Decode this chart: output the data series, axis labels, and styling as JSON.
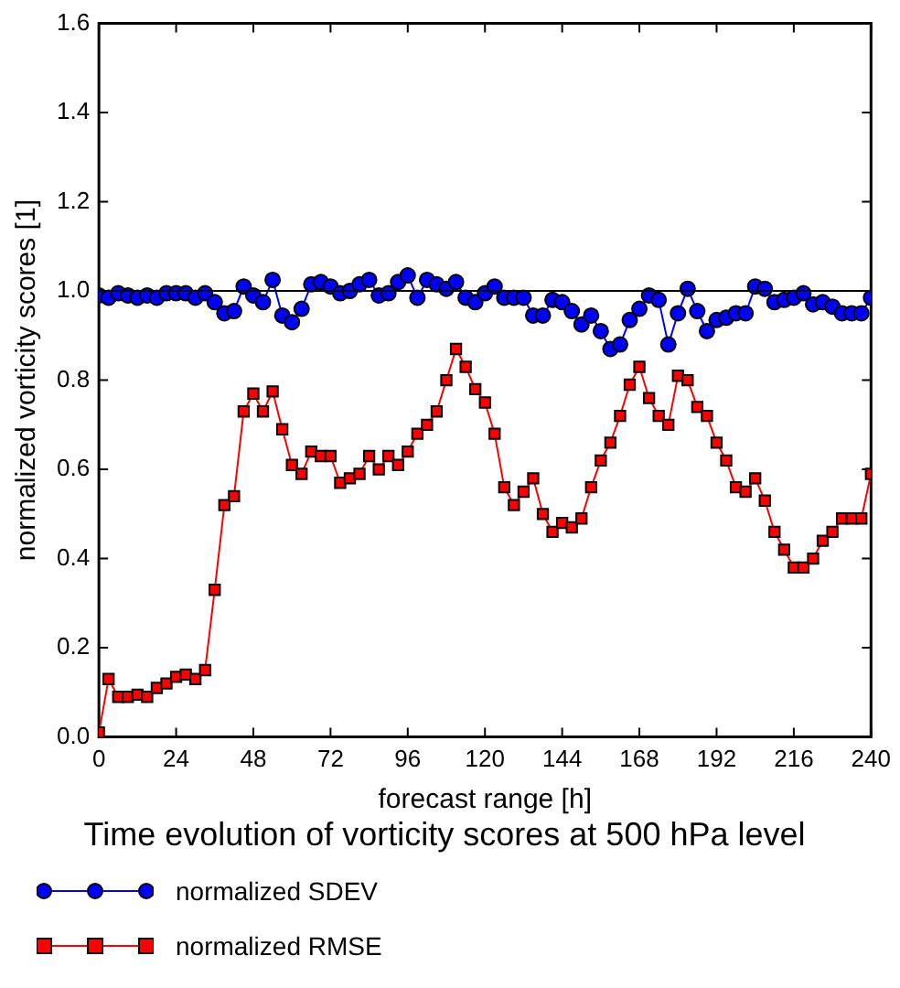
{
  "chart_data": {
    "type": "line",
    "title": "Time evolution of vorticity scores at 500 hPa level",
    "xlabel": "forecast range [h]",
    "ylabel": "normalized vorticity scores [1]",
    "x": [
      0,
      3,
      6,
      9,
      12,
      15,
      18,
      21,
      24,
      27,
      30,
      33,
      36,
      39,
      42,
      45,
      48,
      51,
      54,
      57,
      60,
      63,
      66,
      69,
      72,
      75,
      78,
      81,
      84,
      87,
      90,
      93,
      96,
      99,
      102,
      105,
      108,
      111,
      114,
      117,
      120,
      123,
      126,
      129,
      132,
      135,
      138,
      141,
      144,
      147,
      150,
      153,
      156,
      159,
      162,
      165,
      168,
      171,
      174,
      177,
      180,
      183,
      186,
      189,
      192,
      195,
      198,
      201,
      204,
      207,
      210,
      213,
      216,
      219,
      222,
      225,
      228,
      231,
      234,
      237,
      240
    ],
    "series": [
      {
        "name": "normalized SDEV",
        "color": "#0000ff",
        "marker": "circle",
        "values": [
          0.99,
          0.985,
          0.995,
          0.99,
          0.985,
          0.99,
          0.985,
          0.995,
          0.995,
          0.995,
          0.985,
          0.995,
          0.975,
          0.95,
          0.955,
          1.01,
          0.99,
          0.975,
          1.025,
          0.945,
          0.93,
          0.96,
          1.015,
          1.02,
          1.01,
          0.995,
          1.0,
          1.015,
          1.025,
          0.99,
          0.995,
          1.02,
          1.035,
          0.985,
          1.025,
          1.015,
          1.005,
          1.02,
          0.985,
          0.975,
          0.995,
          1.01,
          0.985,
          0.985,
          0.985,
          0.945,
          0.945,
          0.98,
          0.975,
          0.955,
          0.925,
          0.945,
          0.91,
          0.87,
          0.88,
          0.935,
          0.96,
          0.99,
          0.98,
          0.88,
          0.95,
          1.005,
          0.955,
          0.91,
          0.935,
          0.94,
          0.95,
          0.95,
          1.01,
          1.005,
          0.975,
          0.98,
          0.985,
          0.995,
          0.97,
          0.975,
          0.965,
          0.95,
          0.95,
          0.95,
          0.985
        ]
      },
      {
        "name": "normalized RMSE",
        "color": "#ff0000",
        "marker": "square",
        "values": [
          0.01,
          0.13,
          0.09,
          0.09,
          0.095,
          0.09,
          0.11,
          0.12,
          0.135,
          0.14,
          0.13,
          0.15,
          0.33,
          0.52,
          0.54,
          0.73,
          0.77,
          0.73,
          0.775,
          0.69,
          0.61,
          0.59,
          0.64,
          0.63,
          0.63,
          0.57,
          0.58,
          0.59,
          0.63,
          0.6,
          0.63,
          0.61,
          0.64,
          0.68,
          0.7,
          0.73,
          0.8,
          0.87,
          0.83,
          0.78,
          0.75,
          0.68,
          0.56,
          0.52,
          0.55,
          0.58,
          0.5,
          0.46,
          0.48,
          0.47,
          0.49,
          0.56,
          0.62,
          0.66,
          0.72,
          0.79,
          0.83,
          0.76,
          0.72,
          0.7,
          0.81,
          0.8,
          0.74,
          0.72,
          0.66,
          0.62,
          0.56,
          0.55,
          0.58,
          0.53,
          0.46,
          0.42,
          0.38,
          0.38,
          0.4,
          0.44,
          0.46,
          0.49,
          0.49,
          0.49,
          0.59
        ]
      }
    ],
    "xlim": [
      0,
      240
    ],
    "xticks": [
      0,
      24,
      48,
      72,
      96,
      120,
      144,
      168,
      192,
      216,
      240
    ],
    "ylim": [
      0,
      1.6
    ],
    "yticks": [
      {
        "value": 0,
        "label": "0.0"
      },
      {
        "value": 0.2,
        "label": "0.2"
      },
      {
        "value": 0.4,
        "label": "0.4"
      },
      {
        "value": 0.6,
        "label": "0.6"
      },
      {
        "value": 0.8,
        "label": "0.8"
      },
      {
        "value": 1,
        "label": "1.0"
      },
      {
        "value": 1.2,
        "label": "1.2"
      },
      {
        "value": 1.4,
        "label": "1.4"
      },
      {
        "value": 1.6,
        "label": "1.6"
      }
    ],
    "ref_lines": [
      {
        "axis": "y",
        "value": 1,
        "color": "#000000"
      }
    ],
    "legend": "bottom",
    "grid": false
  }
}
